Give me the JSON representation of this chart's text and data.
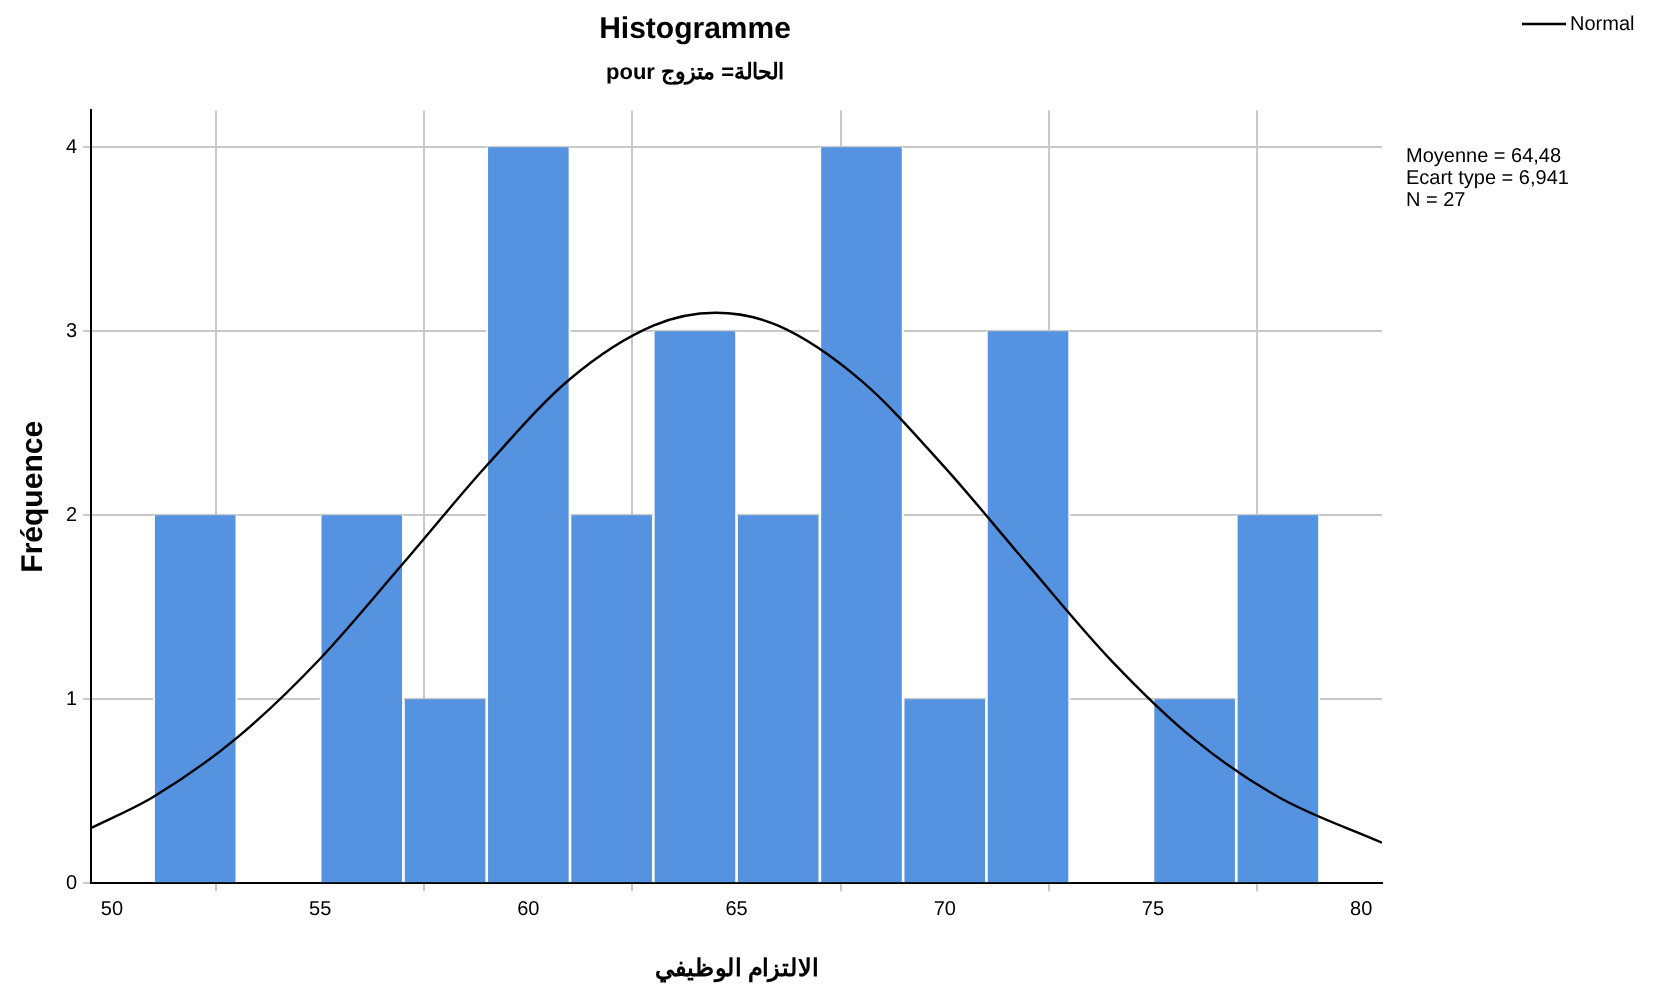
{
  "chart_data": {
    "type": "histogram",
    "title": "Histogramme",
    "subtitle": "pour الحالة= متزوج",
    "xlabel": "الالتزام الوظيفي",
    "ylabel": "Fréquence",
    "bins": [
      51,
      53,
      55,
      57,
      59,
      61,
      63,
      65,
      67,
      69,
      71,
      73,
      75,
      77,
      79
    ],
    "values": [
      2,
      0,
      2,
      1,
      4,
      2,
      3,
      2,
      4,
      1,
      3,
      0,
      1,
      2
    ],
    "color": "#5592e0",
    "series": [
      {
        "name": "Normal",
        "type": "line",
        "color": "#000000",
        "x": [
          49.5,
          51,
          53,
          55,
          57,
          59,
          61,
          63,
          64.5,
          66,
          68,
          70,
          72,
          74,
          76,
          78,
          80.5
        ],
        "values": [
          0.3,
          0.47,
          0.79,
          1.22,
          1.74,
          2.27,
          2.74,
          3.03,
          3.1,
          3.03,
          2.73,
          2.26,
          1.73,
          1.21,
          0.78,
          0.47,
          0.22
        ]
      }
    ],
    "xlim": [
      49.5,
      80.5
    ],
    "xticks": [
      50,
      55,
      60,
      65,
      70,
      75,
      80
    ],
    "ylim": [
      0,
      4.2
    ],
    "yticks": [
      0,
      1,
      2,
      3,
      4
    ],
    "annotations": [
      "Moyenne = 64,48",
      "Ecart type = 6,941",
      "N = 27"
    ],
    "grid": true,
    "legend": "top right",
    "marker": "none",
    "line_style": "solid"
  }
}
